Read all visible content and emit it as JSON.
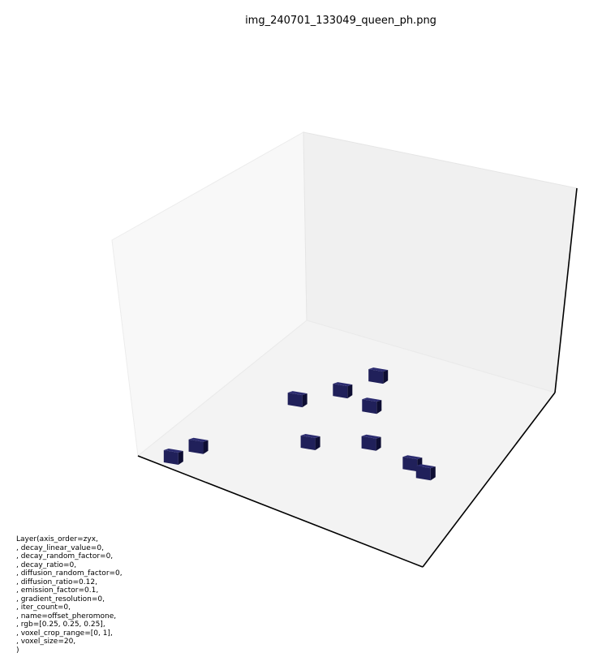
{
  "chart_data": {
    "type": "scatter3d",
    "title": "img_240701_133049_queen_ph.png",
    "marker": "cube voxel",
    "voxel_color": "#20205a",
    "grid": false,
    "axis_ticks": false,
    "voxels": [
      {
        "x": 0.18,
        "y": 0.4
      },
      {
        "x": 0.31,
        "y": 0.34
      },
      {
        "x": 0.34,
        "y": 0.47
      },
      {
        "x": 0.43,
        "y": 0.24
      },
      {
        "x": 0.52,
        "y": 0.57
      },
      {
        "x": 0.55,
        "y": 0.74
      },
      {
        "x": 0.57,
        "y": 0.8
      },
      {
        "x": 0.62,
        "y": 0.4
      },
      {
        "x": 0.84,
        "y": 0.12
      },
      {
        "x": 0.94,
        "y": 0.09
      }
    ]
  },
  "layer_info": {
    "lines": [
      "Layer(axis_order=zyx,",
      ", decay_linear_value=0,",
      ", decay_random_factor=0,",
      ", decay_ratio=0,",
      ", diffusion_random_factor=0,",
      ", diffusion_ratio=0.12,",
      ", emission_factor=0.1,",
      ", gradient_resolution=0,",
      ", iter_count=0,",
      ", name=offset_pheromone,",
      ", rgb=[0.25, 0.25, 0.25],",
      ", voxel_crop_range=[0, 1],",
      ", voxel_size=20,",
      ")"
    ]
  }
}
